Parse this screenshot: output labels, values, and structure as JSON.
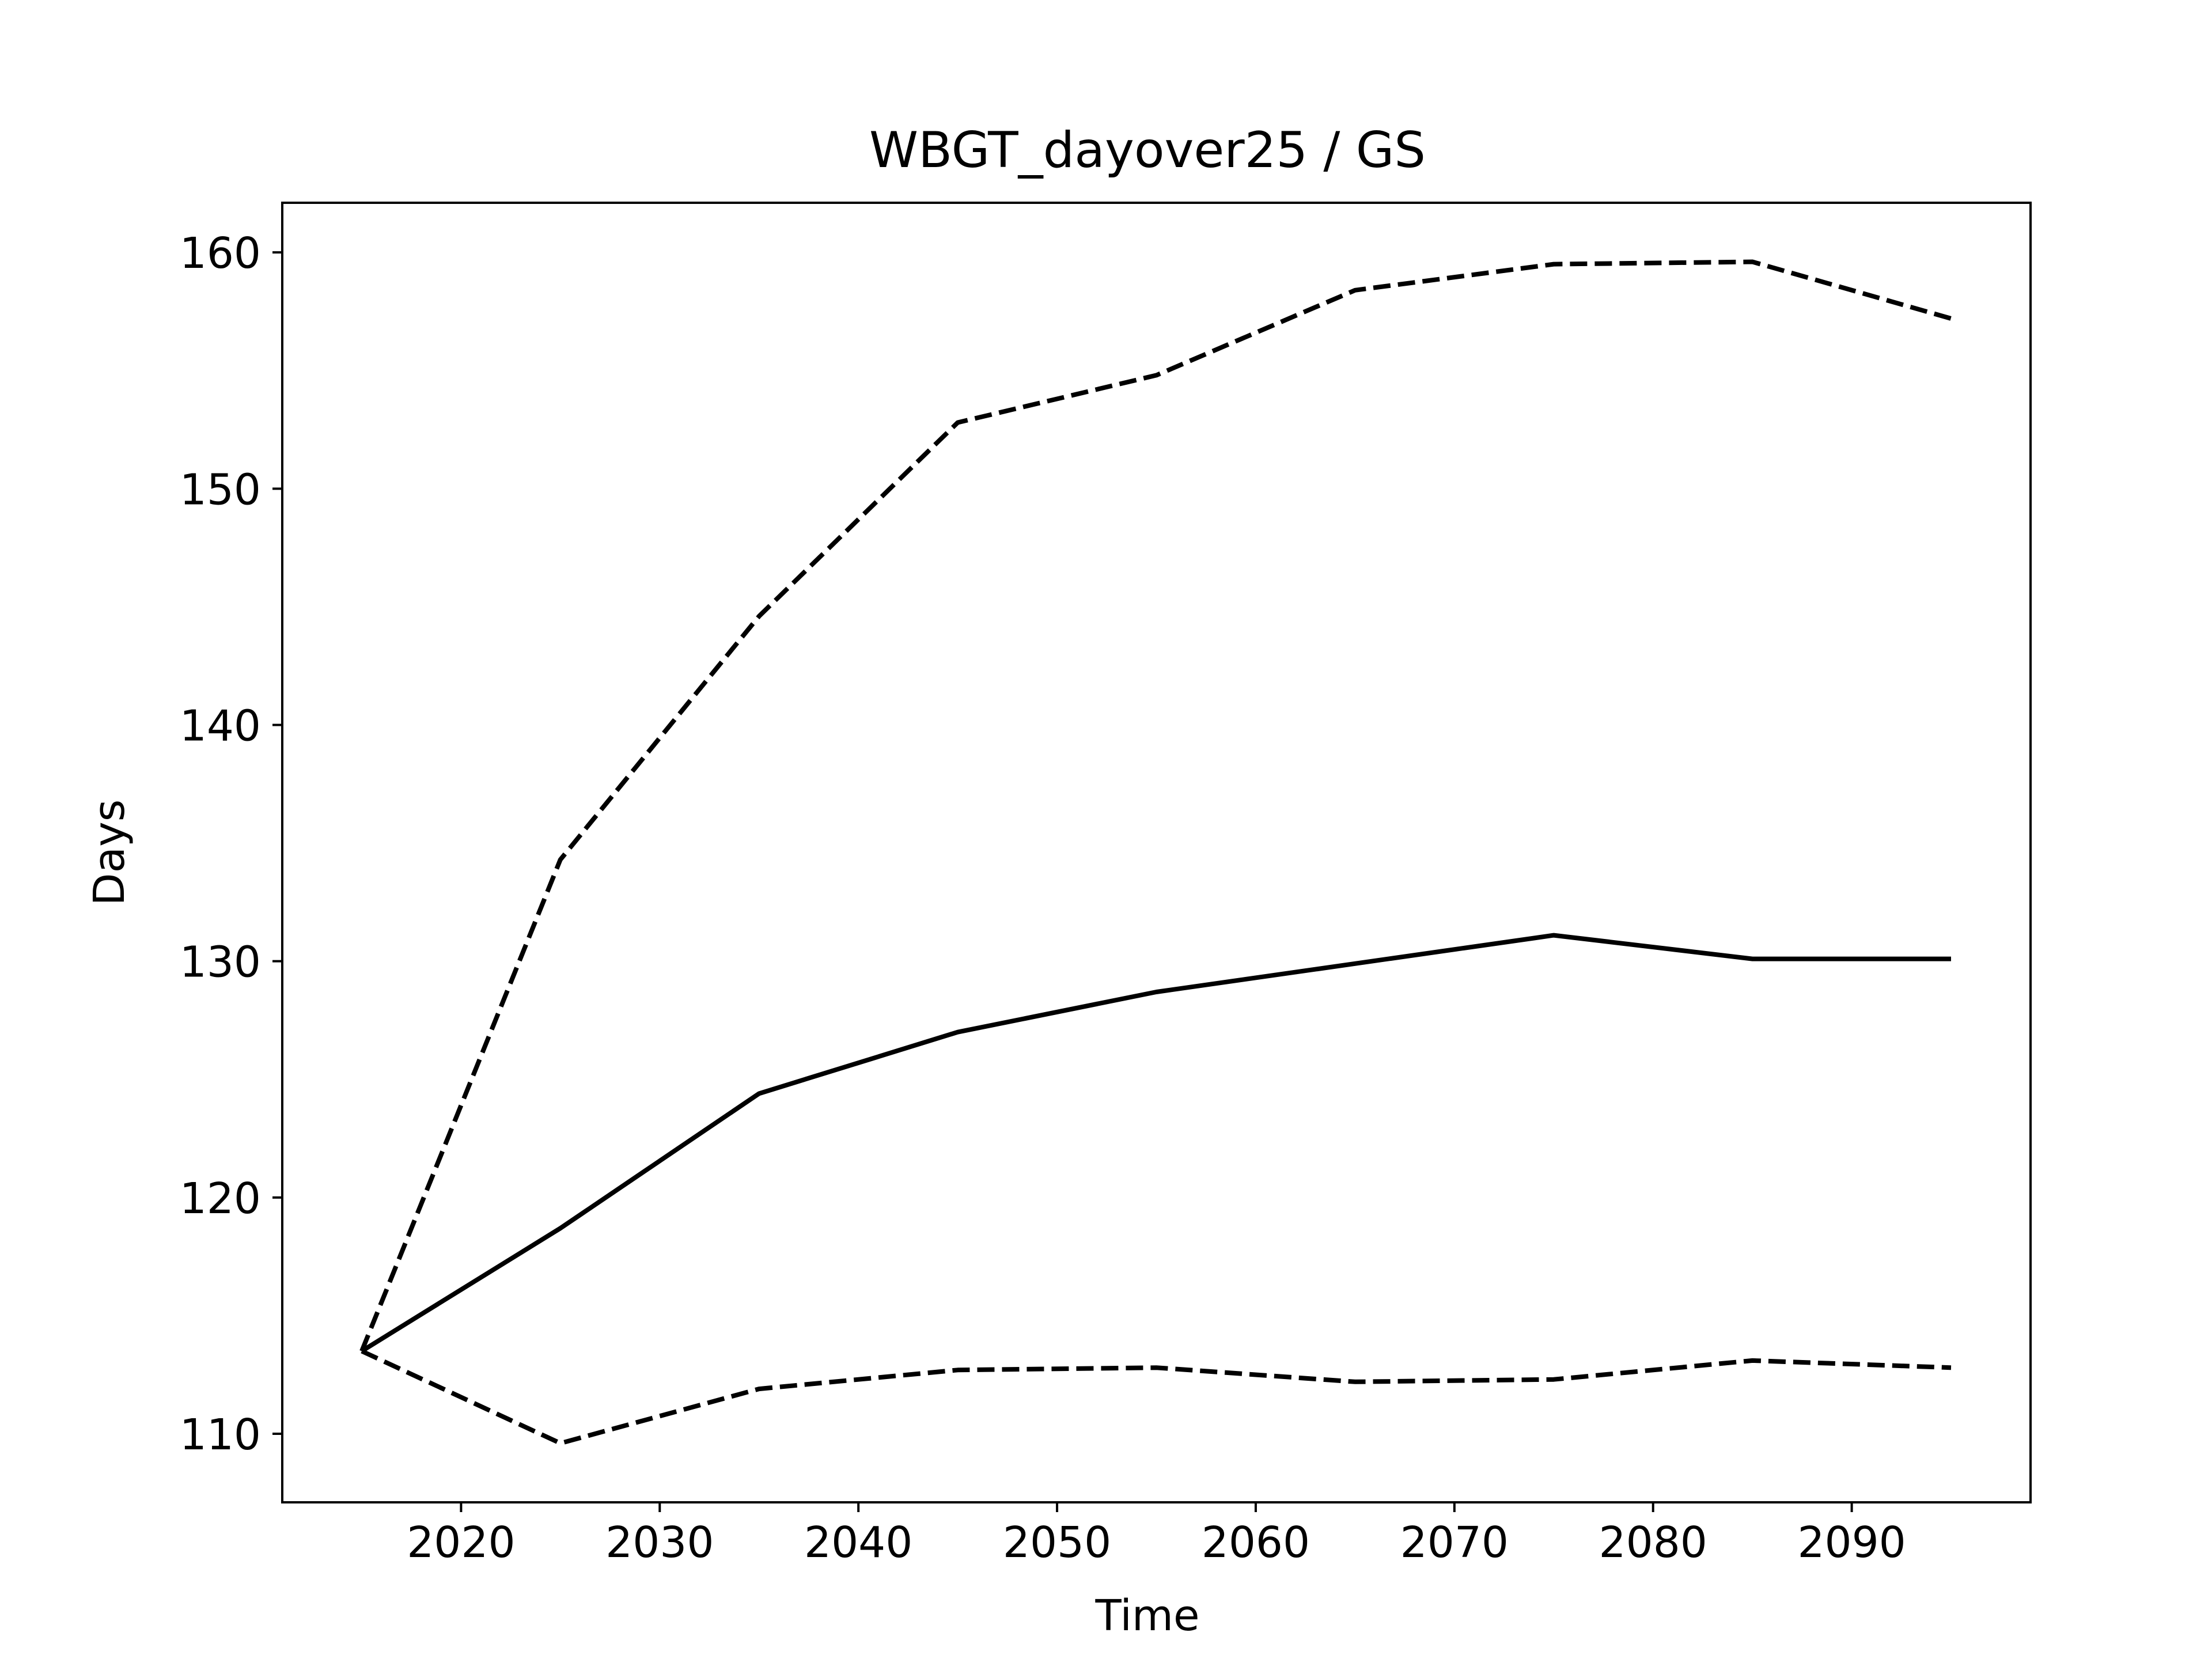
{
  "chart_data": {
    "type": "line",
    "title": "WBGT_dayover25 / GS",
    "xlabel": "Time",
    "ylabel": "Days",
    "x": [
      2015,
      2025,
      2035,
      2045,
      2055,
      2065,
      2075,
      2085,
      2095
    ],
    "series": [
      {
        "style": "dashed",
        "values": [
          113.5,
          134.3,
          144.6,
          152.8,
          154.8,
          158.4,
          159.5,
          159.6,
          157.2
        ]
      },
      {
        "style": "solid",
        "values": [
          113.5,
          118.7,
          124.4,
          127.0,
          128.7,
          129.9,
          131.1,
          130.1,
          130.1
        ]
      },
      {
        "style": "dashed",
        "values": [
          113.5,
          109.6,
          111.9,
          112.7,
          112.8,
          112.2,
          112.3,
          113.1,
          112.8
        ]
      }
    ],
    "xlim": [
      2011,
      2099
    ],
    "ylim": [
      107.1,
      162.1
    ],
    "xticks": [
      2020,
      2030,
      2040,
      2050,
      2060,
      2070,
      2080,
      2090
    ],
    "yticks": [
      110,
      120,
      130,
      140,
      150,
      160
    ],
    "grid": false,
    "legend": "none",
    "colors": {
      "line": "#000000",
      "frame": "#000000",
      "background": "#ffffff"
    }
  }
}
